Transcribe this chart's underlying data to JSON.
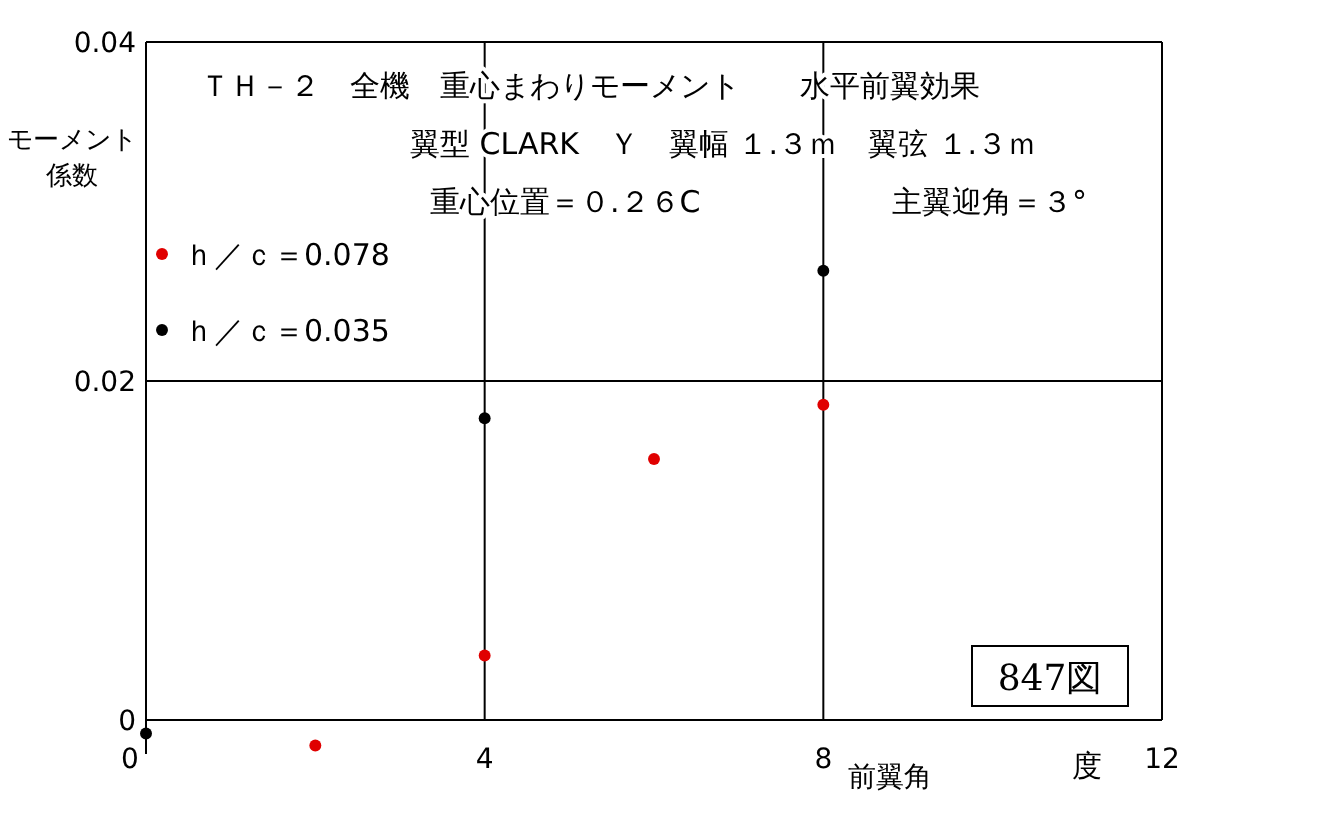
{
  "chart_data": {
    "type": "scatter",
    "title": "ＴＨ－２　全機　重心まわりモーメント　　水平前翼効果",
    "subtitle": "翼型 CLARK　Ｙ　翼幅 １.３ｍ　翼弦 １.３ｍ",
    "xlabel": "前翼角",
    "ylabel": "モーメント係数",
    "annotations": [
      "重心位置＝０.２６C",
      "主翼迎角＝３°",
      "847図",
      "度"
    ],
    "series": [
      {
        "name": "ｈ／ｃ＝0.078",
        "color": "#e00000",
        "x": [
          2,
          4,
          6,
          8
        ],
        "values": [
          -0.0015,
          0.0038,
          0.0154,
          0.0186
        ]
      },
      {
        "name": "ｈ／ｃ＝0.035",
        "color": "#000000",
        "x": [
          0,
          4,
          8
        ],
        "values": [
          -0.0008,
          0.0178,
          0.0265
        ]
      }
    ],
    "xlim": [
      0,
      12
    ],
    "xticks": [
      0,
      4,
      8,
      12
    ],
    "ylim": [
      -0.002,
      0.04
    ],
    "yticks": [
      0,
      {
        "value": 0.02,
        "label": "0.02"
      },
      {
        "value": 0.04,
        "label": "0.04"
      }
    ],
    "grid": true,
    "legend": "top left",
    "marker": "circle"
  }
}
